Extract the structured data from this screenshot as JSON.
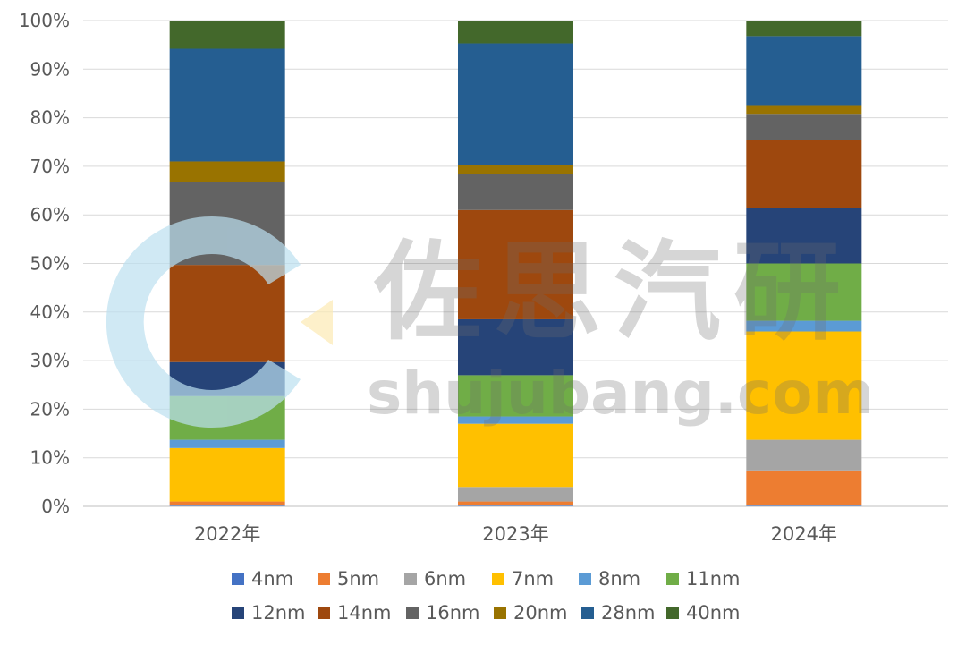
{
  "chart_data": {
    "type": "bar",
    "stacked": true,
    "percent": true,
    "categories": [
      "2022年",
      "2023年",
      "2024年"
    ],
    "y_ticks": [
      "0%",
      "10%",
      "20%",
      "30%",
      "40%",
      "50%",
      "60%",
      "70%",
      "80%",
      "90%",
      "100%"
    ],
    "ylim": [
      0,
      100
    ],
    "grid": true,
    "legend_position": "bottom",
    "series": [
      {
        "name": "4nm",
        "color": "#4472C4",
        "values": [
          0.3,
          0.2,
          0.3
        ]
      },
      {
        "name": "5nm",
        "color": "#ED7D31",
        "values": [
          0.7,
          0.8,
          7.1
        ]
      },
      {
        "name": "6nm",
        "color": "#A5A5A5",
        "values": [
          0.0,
          3.0,
          6.3
        ]
      },
      {
        "name": "7nm",
        "color": "#FFC000",
        "values": [
          11.0,
          13.0,
          22.3
        ]
      },
      {
        "name": "8nm",
        "color": "#5B9BD5",
        "values": [
          1.7,
          1.5,
          2.2
        ]
      },
      {
        "name": "11nm",
        "color": "#70AD47",
        "values": [
          9.0,
          8.5,
          11.8
        ]
      },
      {
        "name": "12nm",
        "color": "#264478",
        "values": [
          7.0,
          11.5,
          11.5
        ]
      },
      {
        "name": "14nm",
        "color": "#9E480E",
        "values": [
          20.0,
          22.5,
          14.0
        ]
      },
      {
        "name": "16nm",
        "color": "#636363",
        "values": [
          17.0,
          7.5,
          5.3
        ]
      },
      {
        "name": "20nm",
        "color": "#997300",
        "values": [
          4.3,
          1.7,
          1.8
        ]
      },
      {
        "name": "28nm",
        "color": "#255E91",
        "values": [
          23.2,
          25.1,
          14.2
        ]
      },
      {
        "name": "40nm",
        "color": "#43682B",
        "values": [
          5.8,
          4.7,
          3.2
        ]
      }
    ]
  },
  "watermark": {
    "cn": "佐思汽研",
    "en": "shujubang.com",
    "logo_colors": [
      "#BCE0F0",
      "#FDEBB5"
    ]
  }
}
